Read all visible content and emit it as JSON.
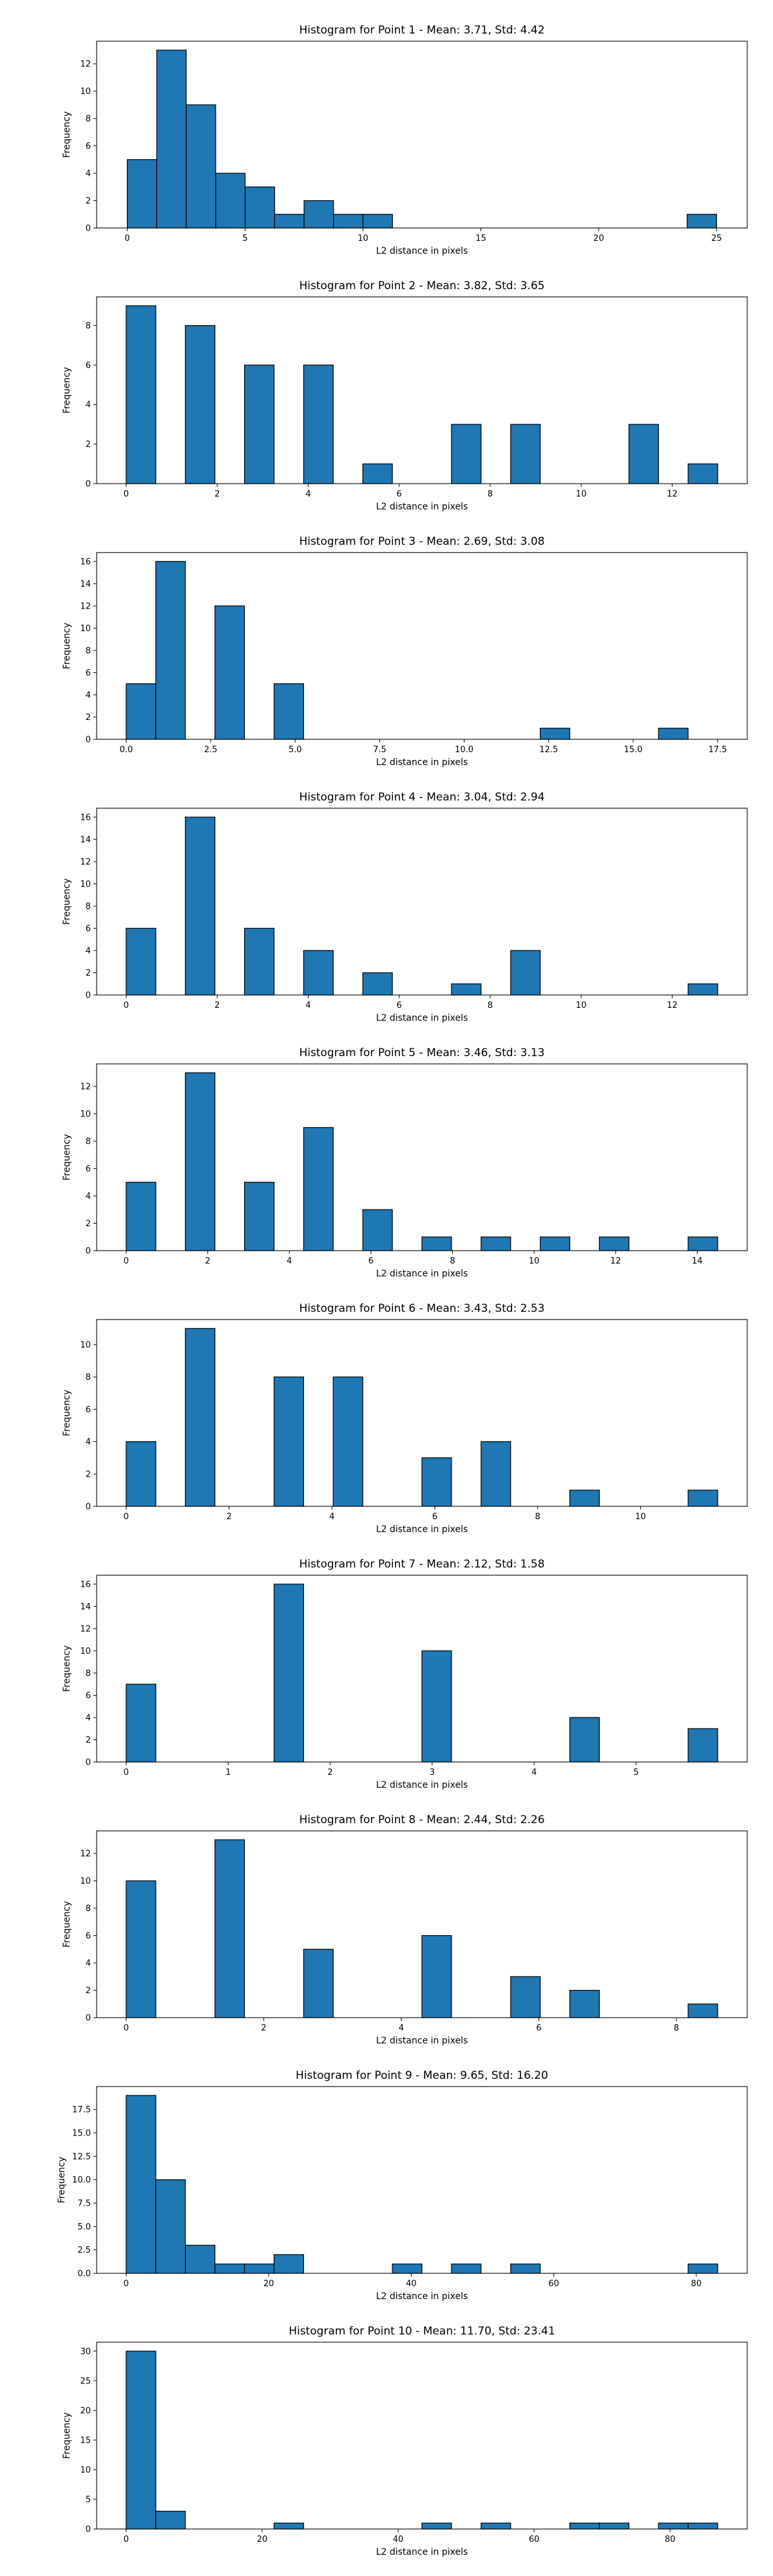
{
  "figure": {
    "background": "#ffffff"
  },
  "style": {
    "bar_fill": "#1f77b4",
    "bar_edge": "#000000",
    "axis_color": "#000000"
  },
  "chart_data": [
    {
      "type": "bar",
      "title": "Histogram for Point 1 - Mean: 3.71, Std: 4.42",
      "xlabel": "L2 distance in pixels",
      "ylabel": "Frequency",
      "xlim": [
        -1.3,
        26.3
      ],
      "ylim": [
        0,
        13.65
      ],
      "bin_edges": [
        0,
        1.25,
        2.5,
        3.75,
        5,
        6.25,
        7.5,
        8.75,
        10,
        11.25,
        12.5,
        13.75,
        15,
        16.25,
        17.5,
        18.75,
        20,
        21.25,
        22.5,
        23.75,
        25
      ],
      "values": [
        5,
        13,
        9,
        4,
        3,
        1,
        2,
        1,
        1,
        0,
        0,
        0,
        0,
        0,
        0,
        0,
        0,
        0,
        0,
        1
      ],
      "xticks": [
        0,
        5,
        10,
        15,
        20,
        25
      ],
      "xtick_labels": [
        "0",
        "5",
        "10",
        "15",
        "20",
        "25"
      ],
      "yticks": [
        0,
        2,
        4,
        6,
        8,
        10,
        12
      ],
      "ytick_labels": [
        "0",
        "2",
        "4",
        "6",
        "8",
        "10",
        "12"
      ]
    },
    {
      "type": "bar",
      "title": "Histogram for Point 2 - Mean: 3.82, Std: 3.65",
      "xlabel": "L2 distance in pixels",
      "ylabel": "Frequency",
      "xlim": [
        -0.65,
        13.65
      ],
      "ylim": [
        0,
        9.45
      ],
      "bin_edges": [
        0,
        0.65,
        1.3,
        1.95,
        2.6,
        3.25,
        3.9,
        4.55,
        5.2,
        5.85,
        6.5,
        7.15,
        7.8,
        8.45,
        9.1,
        9.75,
        10.4,
        11.05,
        11.7,
        12.35,
        13
      ],
      "values": [
        9,
        0,
        8,
        0,
        6,
        0,
        6,
        0,
        1,
        0,
        0,
        3,
        0,
        3,
        0,
        0,
        0,
        3,
        0,
        1
      ],
      "xticks": [
        0,
        2,
        4,
        6,
        8,
        10,
        12
      ],
      "xtick_labels": [
        "0",
        "2",
        "4",
        "6",
        "8",
        "10",
        "12"
      ],
      "yticks": [
        0,
        2,
        4,
        6,
        8
      ],
      "ytick_labels": [
        "0",
        "2",
        "4",
        "6",
        "8"
      ]
    },
    {
      "type": "bar",
      "title": "Histogram for Point 3 - Mean: 2.69, Std: 3.08",
      "xlabel": "L2 distance in pixels",
      "ylabel": "Frequency",
      "xlim": [
        -0.875,
        18.375
      ],
      "ylim": [
        0,
        16.8
      ],
      "bin_edges": [
        0,
        0.875,
        1.75,
        2.625,
        3.5,
        4.375,
        5.25,
        6.125,
        7,
        7.875,
        8.75,
        9.625,
        10.5,
        11.375,
        12.25,
        13.125,
        14,
        14.875,
        15.75,
        16.625,
        17.5
      ],
      "values": [
        5,
        16,
        0,
        12,
        0,
        5,
        0,
        0,
        0,
        0,
        0,
        0,
        0,
        0,
        1,
        0,
        0,
        0,
        1,
        0
      ],
      "xticks": [
        0,
        2.5,
        5,
        7.5,
        10,
        12.5,
        15,
        17.5
      ],
      "xtick_labels": [
        "0.0",
        "2.5",
        "5.0",
        "7.5",
        "10.0",
        "12.5",
        "15.0",
        "17.5"
      ],
      "yticks": [
        0,
        2,
        4,
        6,
        8,
        10,
        12,
        14,
        16
      ],
      "ytick_labels": [
        "0",
        "2",
        "4",
        "6",
        "8",
        "10",
        "12",
        "14",
        "16"
      ]
    },
    {
      "type": "bar",
      "title": "Histogram for Point 4 - Mean: 3.04, Std: 2.94",
      "xlabel": "L2 distance in pixels",
      "ylabel": "Frequency",
      "xlim": [
        -0.65,
        13.65
      ],
      "ylim": [
        0,
        16.8
      ],
      "bin_edges": [
        0,
        0.65,
        1.3,
        1.95,
        2.6,
        3.25,
        3.9,
        4.55,
        5.2,
        5.85,
        6.5,
        7.15,
        7.8,
        8.45,
        9.1,
        9.75,
        10.4,
        11.05,
        11.7,
        12.35,
        13
      ],
      "values": [
        6,
        0,
        16,
        0,
        6,
        0,
        4,
        0,
        2,
        0,
        0,
        1,
        0,
        4,
        0,
        0,
        0,
        0,
        0,
        1
      ],
      "xticks": [
        0,
        2,
        4,
        6,
        8,
        10,
        12
      ],
      "xtick_labels": [
        "0",
        "2",
        "4",
        "6",
        "8",
        "10",
        "12"
      ],
      "yticks": [
        0,
        2,
        4,
        6,
        8,
        10,
        12,
        14,
        16
      ],
      "ytick_labels": [
        "0",
        "2",
        "4",
        "6",
        "8",
        "10",
        "12",
        "14",
        "16"
      ]
    },
    {
      "type": "bar",
      "title": "Histogram for Point 5 - Mean: 3.46, Std: 3.13",
      "xlabel": "L2 distance in pixels",
      "ylabel": "Frequency",
      "xlim": [
        -0.725,
        15.225
      ],
      "ylim": [
        0,
        13.65
      ],
      "bin_edges": [
        0,
        0.725,
        1.45,
        2.175,
        2.9,
        3.625,
        4.35,
        5.075,
        5.8,
        6.525,
        7.25,
        7.975,
        8.7,
        9.425,
        10.15,
        10.875,
        11.6,
        12.325,
        13.05,
        13.775,
        14.5
      ],
      "values": [
        5,
        0,
        13,
        0,
        5,
        0,
        9,
        0,
        3,
        0,
        1,
        0,
        1,
        0,
        1,
        0,
        1,
        0,
        0,
        1
      ],
      "xticks": [
        0,
        2,
        4,
        6,
        8,
        10,
        12,
        14
      ],
      "xtick_labels": [
        "0",
        "2",
        "4",
        "6",
        "8",
        "10",
        "12",
        "14"
      ],
      "yticks": [
        0,
        2,
        4,
        6,
        8,
        10,
        12
      ],
      "ytick_labels": [
        "0",
        "2",
        "4",
        "6",
        "8",
        "10",
        "12"
      ]
    },
    {
      "type": "bar",
      "title": "Histogram for Point 6 - Mean: 3.43, Std: 2.53",
      "xlabel": "L2 distance in pixels",
      "ylabel": "Frequency",
      "xlim": [
        -0.575,
        12.075
      ],
      "ylim": [
        0,
        11.55
      ],
      "bin_edges": [
        0,
        0.575,
        1.15,
        1.725,
        2.3,
        2.875,
        3.45,
        4.025,
        4.6,
        5.175,
        5.75,
        6.325,
        6.9,
        7.475,
        8.05,
        8.625,
        9.2,
        9.775,
        10.35,
        10.925,
        11.5
      ],
      "values": [
        4,
        0,
        11,
        0,
        0,
        8,
        0,
        8,
        0,
        0,
        3,
        0,
        4,
        0,
        0,
        1,
        0,
        0,
        0,
        1
      ],
      "xticks": [
        0,
        2,
        4,
        6,
        8,
        10
      ],
      "xtick_labels": [
        "0",
        "2",
        "4",
        "6",
        "8",
        "10"
      ],
      "yticks": [
        0,
        2,
        4,
        6,
        8,
        10
      ],
      "ytick_labels": [
        "0",
        "2",
        "4",
        "6",
        "8",
        "10"
      ]
    },
    {
      "type": "bar",
      "title": "Histogram for Point 7 - Mean: 2.12, Std: 1.58",
      "xlabel": "L2 distance in pixels",
      "ylabel": "Frequency",
      "xlim": [
        -0.29,
        6.09
      ],
      "ylim": [
        0,
        16.8
      ],
      "bin_edges": [
        0,
        0.29,
        0.58,
        0.87,
        1.16,
        1.45,
        1.74,
        2.03,
        2.32,
        2.61,
        2.9,
        3.19,
        3.48,
        3.77,
        4.06,
        4.35,
        4.64,
        4.93,
        5.22,
        5.51,
        5.8
      ],
      "values": [
        7,
        0,
        0,
        0,
        0,
        16,
        0,
        0,
        0,
        0,
        10,
        0,
        0,
        0,
        0,
        4,
        0,
        0,
        0,
        3
      ],
      "xticks": [
        0,
        1,
        2,
        3,
        4,
        5
      ],
      "xtick_labels": [
        "0",
        "1",
        "2",
        "3",
        "4",
        "5"
      ],
      "yticks": [
        0,
        2,
        4,
        6,
        8,
        10,
        12,
        14,
        16
      ],
      "ytick_labels": [
        "0",
        "2",
        "4",
        "6",
        "8",
        "10",
        "12",
        "14",
        "16"
      ]
    },
    {
      "type": "bar",
      "title": "Histogram for Point 8 - Mean: 2.44, Std: 2.26",
      "xlabel": "L2 distance in pixels",
      "ylabel": "Frequency",
      "xlim": [
        -0.43,
        9.03
      ],
      "ylim": [
        0,
        13.65
      ],
      "bin_edges": [
        0,
        0.43,
        0.86,
        1.29,
        1.72,
        2.15,
        2.58,
        3.01,
        3.44,
        3.87,
        4.3,
        4.73,
        5.16,
        5.59,
        6.02,
        6.45,
        6.88,
        7.31,
        7.74,
        8.17,
        8.6
      ],
      "values": [
        10,
        0,
        0,
        13,
        0,
        0,
        5,
        0,
        0,
        0,
        6,
        0,
        0,
        3,
        0,
        2,
        0,
        0,
        0,
        1
      ],
      "xticks": [
        0,
        2,
        4,
        6,
        8
      ],
      "xtick_labels": [
        "0",
        "2",
        "4",
        "6",
        "8"
      ],
      "yticks": [
        0,
        2,
        4,
        6,
        8,
        10,
        12
      ],
      "ytick_labels": [
        "0",
        "2",
        "4",
        "6",
        "8",
        "10",
        "12"
      ]
    },
    {
      "type": "bar",
      "title": "Histogram for Point 9 - Mean: 9.65, Std: 16.20",
      "xlabel": "L2 distance in pixels",
      "ylabel": "Frequency",
      "xlim": [
        -4.15,
        87.15
      ],
      "ylim": [
        0,
        19.95
      ],
      "bin_edges": [
        0,
        4.15,
        8.3,
        12.45,
        16.6,
        20.75,
        24.9,
        29.05,
        33.2,
        37.35,
        41.5,
        45.65,
        49.8,
        53.95,
        58.1,
        62.25,
        66.4,
        70.55,
        74.7,
        78.85,
        83
      ],
      "values": [
        19,
        10,
        3,
        1,
        1,
        2,
        0,
        0,
        0,
        1,
        0,
        1,
        0,
        1,
        0,
        0,
        0,
        0,
        0,
        1
      ],
      "xticks": [
        0,
        20,
        40,
        60,
        80
      ],
      "xtick_labels": [
        "0",
        "20",
        "40",
        "60",
        "80"
      ],
      "yticks": [
        0,
        2.5,
        5,
        7.5,
        10,
        12.5,
        15,
        17.5
      ],
      "ytick_labels": [
        "0.0",
        "2.5",
        "5.0",
        "7.5",
        "10.0",
        "12.5",
        "15.0",
        "17.5"
      ]
    },
    {
      "type": "bar",
      "title": "Histogram for Point 10 - Mean: 11.70, Std: 23.41",
      "xlabel": "L2 distance in pixels",
      "ylabel": "Frequency",
      "xlim": [
        -4.35,
        91.35
      ],
      "ylim": [
        0,
        31.5
      ],
      "bin_edges": [
        0,
        4.35,
        8.7,
        13.05,
        17.4,
        21.75,
        26.1,
        30.45,
        34.8,
        39.15,
        43.5,
        47.85,
        52.2,
        56.55,
        60.9,
        65.25,
        69.6,
        73.95,
        78.3,
        82.65,
        87
      ],
      "values": [
        30,
        3,
        0,
        0,
        0,
        1,
        0,
        0,
        0,
        0,
        1,
        0,
        1,
        0,
        0,
        1,
        1,
        0,
        1,
        1
      ],
      "xticks": [
        0,
        20,
        40,
        60,
        80
      ],
      "xtick_labels": [
        "0",
        "20",
        "40",
        "60",
        "80"
      ],
      "yticks": [
        0,
        5,
        10,
        15,
        20,
        25,
        30
      ],
      "ytick_labels": [
        "0",
        "5",
        "10",
        "15",
        "20",
        "25",
        "30"
      ]
    }
  ]
}
